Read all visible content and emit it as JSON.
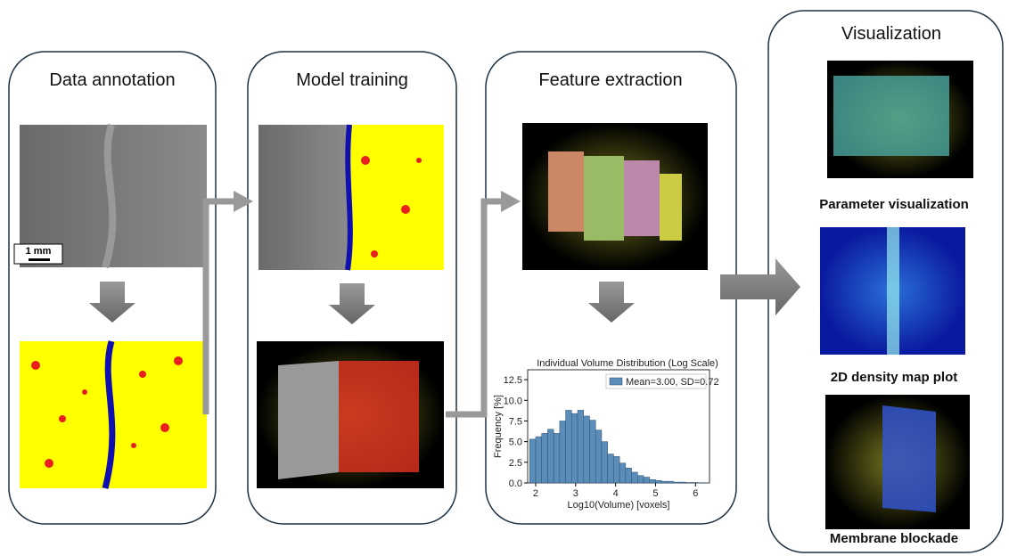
{
  "panels": [
    {
      "title": "Data annotation",
      "scale_bar": "1 mm"
    },
    {
      "title": "Model training"
    },
    {
      "title": "Feature extraction"
    },
    {
      "title": "Visualization",
      "captions": [
        "Parameter visualization",
        "2D density map plot",
        "Membrane blockade"
      ]
    }
  ],
  "histogram": {
    "type": "histogram",
    "title": "Individual Volume Distribution (Log Scale)",
    "x_label": "Log10(Volume) [voxels]",
    "y_label": "Frequency [%]",
    "series_name": "Mean=3.00, SD=0.72",
    "color": "#5b8db8",
    "bins": [
      1.85,
      2.0,
      2.15,
      2.3,
      2.45,
      2.6,
      2.75,
      2.9,
      3.05,
      3.2,
      3.35,
      3.5,
      3.65,
      3.8,
      3.95,
      4.1,
      4.25,
      4.4,
      4.55,
      4.7,
      4.85,
      5.0,
      5.15,
      5.3,
      5.45,
      5.6,
      5.75,
      5.9,
      6.05,
      6.2,
      6.35
    ],
    "counts": [
      5.3,
      5.6,
      6.0,
      6.5,
      6.0,
      7.5,
      8.8,
      8.4,
      8.8,
      8.1,
      7.6,
      6.4,
      5.0,
      3.5,
      3.2,
      2.4,
      1.8,
      1.3,
      0.9,
      0.7,
      0.4,
      0.3,
      0.2,
      0.2,
      0.1,
      0.1,
      0.05,
      0.05,
      0.03,
      0.02
    ],
    "xlim": [
      1.8,
      6.35
    ],
    "ylim": [
      0,
      13.7
    ],
    "xticks": [
      2,
      3,
      4,
      5,
      6
    ],
    "yticks": [
      {
        "value": 0,
        "label": "0.0"
      },
      2.5,
      {
        "value": 5,
        "label": "5.0"
      },
      7.5,
      {
        "value": 10,
        "label": "10.0"
      },
      12.5
    ]
  }
}
